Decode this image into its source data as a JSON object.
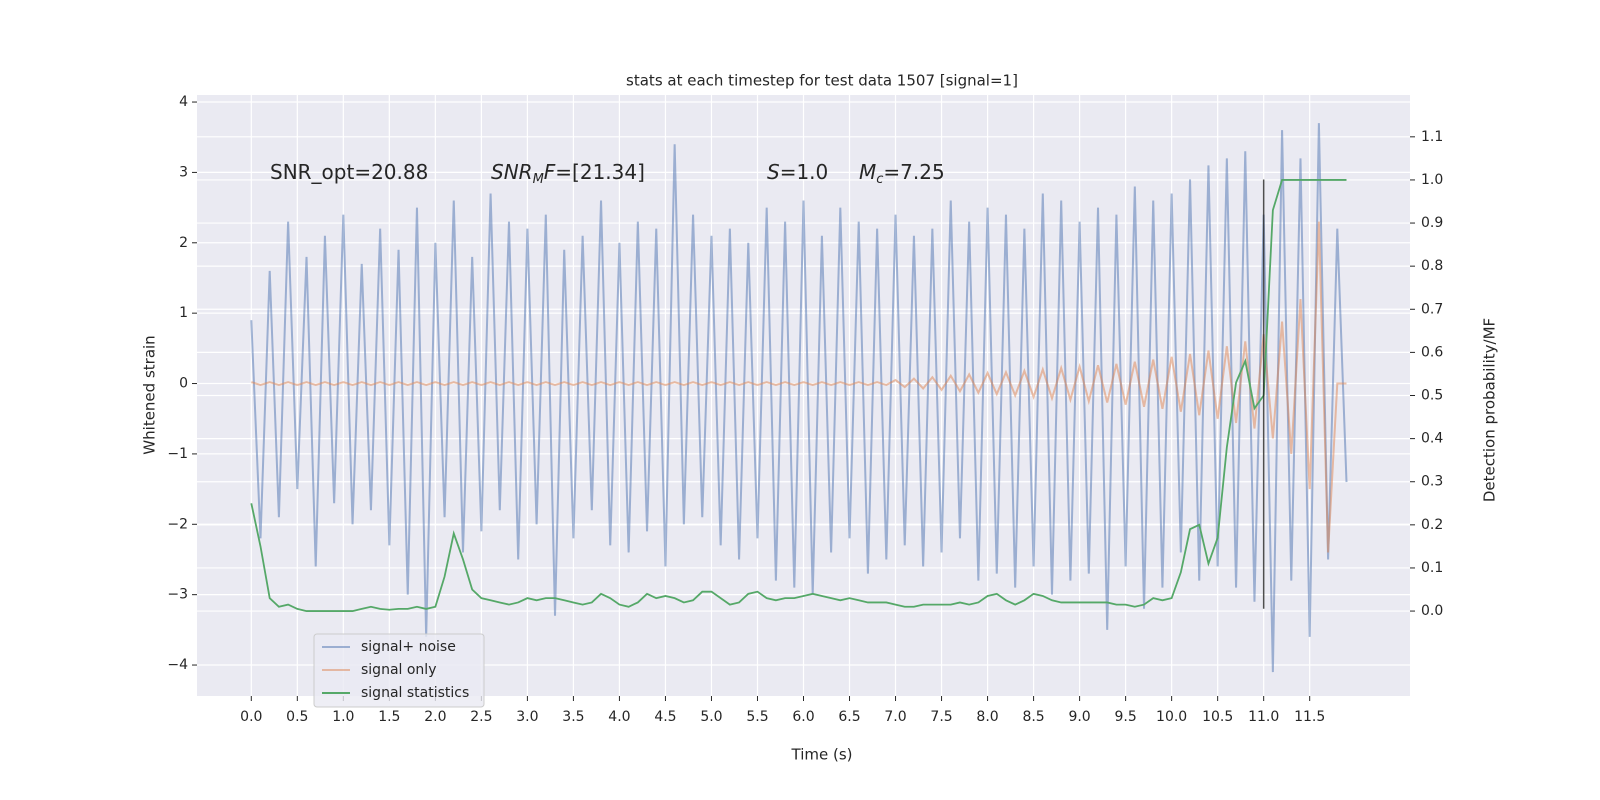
{
  "chart_data": {
    "type": "line",
    "title": "stats at each timestep for test data 1507 [signal=1]",
    "xlabel": "Time (s)",
    "ylabel": "Whitened strain",
    "y2label": "Detection probability/MF",
    "x": [
      0.0,
      0.1,
      0.2,
      0.3,
      0.4,
      0.5,
      0.6,
      0.7,
      0.8,
      0.9,
      1.0,
      1.1,
      1.2,
      1.3,
      1.4,
      1.5,
      1.6,
      1.7,
      1.8,
      1.9,
      2.0,
      2.1,
      2.2,
      2.3,
      2.4,
      2.5,
      2.6,
      2.7,
      2.8,
      2.9,
      3.0,
      3.1,
      3.2,
      3.3,
      3.4,
      3.5,
      3.6,
      3.7,
      3.8,
      3.9,
      4.0,
      4.1,
      4.2,
      4.3,
      4.4,
      4.5,
      4.6,
      4.7,
      4.8,
      4.9,
      5.0,
      5.1,
      5.2,
      5.3,
      5.4,
      5.5,
      5.6,
      5.7,
      5.8,
      5.9,
      6.0,
      6.1,
      6.2,
      6.3,
      6.4,
      6.5,
      6.6,
      6.7,
      6.8,
      6.9,
      7.0,
      7.1,
      7.2,
      7.3,
      7.4,
      7.5,
      7.6,
      7.7,
      7.8,
      7.9,
      8.0,
      8.1,
      8.2,
      8.3,
      8.4,
      8.5,
      8.6,
      8.7,
      8.8,
      8.9,
      9.0,
      9.1,
      9.2,
      9.3,
      9.4,
      9.5,
      9.6,
      9.7,
      9.8,
      9.9,
      10.0,
      10.1,
      10.2,
      10.3,
      10.4,
      10.5,
      10.6,
      10.7,
      10.8,
      10.9,
      11.0,
      11.1,
      11.2,
      11.3,
      11.4,
      11.5,
      11.6,
      11.7,
      11.8,
      11.9
    ],
    "series": [
      {
        "name": "signal+ noise",
        "color": "#4c72b0",
        "opacity": 0.5,
        "values": [
          0.9,
          -2.2,
          1.6,
          -1.9,
          2.3,
          -1.5,
          1.8,
          -2.6,
          2.1,
          -1.7,
          2.4,
          -2.0,
          1.7,
          -1.8,
          2.2,
          -2.3,
          1.9,
          -3.0,
          2.5,
          -3.6,
          2.0,
          -1.9,
          2.6,
          -2.4,
          1.8,
          -2.1,
          2.7,
          -1.8,
          2.3,
          -2.5,
          2.2,
          -2.0,
          2.4,
          -3.3,
          1.9,
          -2.2,
          2.1,
          -1.8,
          2.6,
          -2.3,
          2.0,
          -2.4,
          2.3,
          -2.1,
          2.2,
          -2.6,
          3.4,
          -2.0,
          2.4,
          -1.9,
          2.1,
          -2.3,
          2.2,
          -2.5,
          2.0,
          -2.2,
          2.5,
          -2.8,
          2.3,
          -2.9,
          2.6,
          -3.0,
          2.1,
          -2.4,
          2.5,
          -2.2,
          2.3,
          -2.7,
          2.2,
          -2.5,
          2.4,
          -2.3,
          2.1,
          -2.6,
          2.2,
          -2.4,
          2.6,
          -2.2,
          2.3,
          -2.8,
          2.5,
          -2.7,
          2.4,
          -2.9,
          2.2,
          -2.6,
          2.7,
          -3.0,
          2.6,
          -2.8,
          2.3,
          -2.7,
          2.5,
          -3.5,
          2.4,
          -2.6,
          2.8,
          -3.2,
          2.6,
          -2.9,
          2.7,
          -2.4,
          2.9,
          -2.8,
          3.1,
          -2.6,
          3.2,
          -2.9,
          3.3,
          -3.1,
          2.4,
          -4.1,
          3.6,
          -2.8,
          3.2,
          -3.6,
          3.7,
          -2.5,
          2.2,
          -1.4
        ]
      },
      {
        "name": "signal only",
        "color": "#dd8452",
        "opacity": 0.5,
        "values": [
          0.02,
          -0.02,
          0.02,
          -0.02,
          0.02,
          -0.02,
          0.02,
          -0.02,
          0.02,
          -0.02,
          0.02,
          -0.02,
          0.02,
          -0.02,
          0.02,
          -0.02,
          0.02,
          -0.02,
          0.02,
          -0.02,
          0.02,
          -0.02,
          0.02,
          -0.02,
          0.02,
          -0.02,
          0.02,
          -0.02,
          0.02,
          -0.02,
          0.02,
          -0.02,
          0.02,
          -0.02,
          0.02,
          -0.02,
          0.02,
          -0.02,
          0.02,
          -0.02,
          0.02,
          -0.02,
          0.02,
          -0.02,
          0.02,
          -0.02,
          0.02,
          -0.02,
          0.02,
          -0.02,
          0.02,
          -0.02,
          0.02,
          -0.02,
          0.02,
          -0.02,
          0.02,
          -0.02,
          0.02,
          -0.02,
          0.02,
          -0.02,
          0.02,
          -0.02,
          0.02,
          -0.02,
          0.02,
          -0.02,
          0.02,
          -0.02,
          0.05,
          -0.05,
          0.07,
          -0.07,
          0.09,
          -0.09,
          0.11,
          -0.11,
          0.13,
          -0.13,
          0.15,
          -0.15,
          0.16,
          -0.17,
          0.18,
          -0.19,
          0.2,
          -0.21,
          0.22,
          -0.23,
          0.24,
          -0.25,
          0.26,
          -0.27,
          0.28,
          -0.3,
          0.31,
          -0.33,
          0.34,
          -0.36,
          0.38,
          -0.4,
          0.42,
          -0.45,
          0.47,
          -0.5,
          0.53,
          -0.56,
          0.6,
          -0.64,
          0.7,
          -0.78,
          0.88,
          -1.0,
          1.2,
          -1.5,
          2.3,
          -2.4,
          0,
          0
        ]
      },
      {
        "name": "signal statistics",
        "color": "#55a868",
        "opacity": 1,
        "axis": "y2",
        "values": [
          0.25,
          0.15,
          0.03,
          0.01,
          0.015,
          0.005,
          0.0,
          0.0,
          0.0,
          0.0,
          0.0,
          0.0,
          0.005,
          0.01,
          0.005,
          0.003,
          0.005,
          0.005,
          0.01,
          0.005,
          0.01,
          0.08,
          0.18,
          0.12,
          0.05,
          0.03,
          0.025,
          0.02,
          0.015,
          0.02,
          0.03,
          0.025,
          0.03,
          0.03,
          0.025,
          0.02,
          0.015,
          0.02,
          0.04,
          0.03,
          0.015,
          0.01,
          0.02,
          0.04,
          0.03,
          0.035,
          0.03,
          0.02,
          0.025,
          0.045,
          0.045,
          0.03,
          0.015,
          0.02,
          0.04,
          0.045,
          0.03,
          0.025,
          0.03,
          0.03,
          0.035,
          0.04,
          0.035,
          0.03,
          0.025,
          0.03,
          0.025,
          0.02,
          0.02,
          0.02,
          0.015,
          0.01,
          0.01,
          0.015,
          0.015,
          0.015,
          0.015,
          0.02,
          0.015,
          0.02,
          0.035,
          0.04,
          0.025,
          0.015,
          0.025,
          0.04,
          0.035,
          0.025,
          0.02,
          0.02,
          0.02,
          0.02,
          0.02,
          0.02,
          0.015,
          0.015,
          0.01,
          0.015,
          0.03,
          0.025,
          0.03,
          0.09,
          0.19,
          0.2,
          0.11,
          0.17,
          0.38,
          0.53,
          0.58,
          0.47,
          0.5,
          0.93,
          1.0,
          1.0,
          1.0,
          1.0,
          1.0,
          1.0,
          1.0,
          1.0
        ]
      }
    ],
    "vline": {
      "x": 11.0,
      "y": [
        -3.2,
        2.9
      ],
      "color": "#222222"
    },
    "annotations": [
      {
        "runs": [
          {
            "text": "SNR_opt=20.88"
          }
        ]
      },
      {
        "runs": [
          {
            "text": "SNR",
            "italic": true
          },
          {
            "text": "M",
            "italic": true,
            "sub": true
          },
          {
            "text": "F",
            "italic": true
          },
          {
            "text": "=[21.34]"
          }
        ]
      },
      {
        "runs": [
          {
            "text": "S",
            "italic": true
          },
          {
            "text": "=1.0"
          }
        ]
      },
      {
        "runs": [
          {
            "text": "M",
            "italic": true
          },
          {
            "text": "c",
            "italic": true,
            "sub": true
          },
          {
            "text": "=7.25"
          }
        ]
      }
    ],
    "xlim": [
      -0.59,
      12.59
    ],
    "xticks": [
      {
        "value": 0,
        "label": "0.0"
      },
      0.5,
      {
        "value": 1,
        "label": "1.0"
      },
      1.5,
      {
        "value": 2,
        "label": "2.0"
      },
      2.5,
      {
        "value": 3,
        "label": "3.0"
      },
      3.5,
      {
        "value": 4,
        "label": "4.0"
      },
      4.5,
      {
        "value": 5,
        "label": "5.0"
      },
      5.5,
      {
        "value": 6,
        "label": "6.0"
      },
      6.5,
      {
        "value": 7,
        "label": "7.0"
      },
      7.5,
      {
        "value": 8,
        "label": "8.0"
      },
      8.5,
      {
        "value": 9,
        "label": "9.0"
      },
      9.5,
      {
        "value": 10,
        "label": "10.0"
      },
      10.5,
      {
        "value": 11,
        "label": "11.0"
      },
      11.5
    ],
    "ylim": [
      -4.44,
      4.1
    ],
    "yticks": [
      {
        "value": -4,
        "label": "−4"
      },
      {
        "value": -3,
        "label": "−3"
      },
      {
        "value": -2,
        "label": "−2"
      },
      {
        "value": -1,
        "label": "−1"
      },
      0,
      1,
      2,
      3,
      4
    ],
    "y2lim": [
      -0.197,
      1.197
    ],
    "y2ticks": [
      {
        "value": 0,
        "label": "0.0"
      },
      0.1,
      0.2,
      0.3,
      0.4,
      0.5,
      0.6,
      0.7,
      0.8,
      0.9,
      {
        "value": 1,
        "label": "1.0"
      },
      1.1
    ],
    "grid": true,
    "legend": "lower left",
    "background": "#eaeaf2"
  }
}
